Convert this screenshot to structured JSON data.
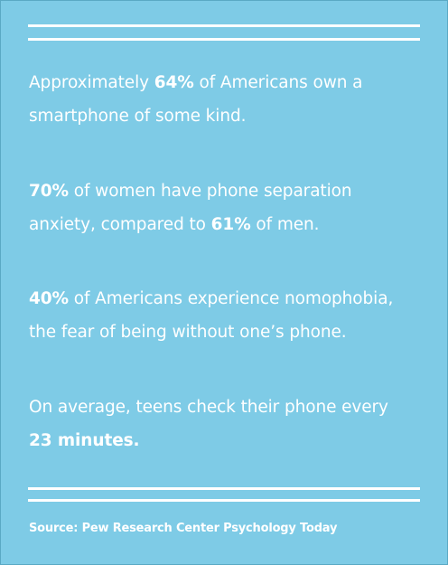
{
  "stats": [
    {
      "pre": "Approximately ",
      "highlight": "64%",
      "post": " of Americans own a",
      "line2": "smartphone of some kind."
    },
    {
      "highlight": "70%",
      "post": " of women have phone separation",
      "line2_pre": "anxiety, compared to ",
      "line2_highlight": "61%",
      "line2_post": " of men."
    },
    {
      "highlight": "40%",
      "post": " of Americans experience nomophobia,",
      "line2": "the fear of being without one’s phone."
    },
    {
      "line1": "On average, teens check their phone every",
      "line2_highlight": "23 minutes."
    }
  ],
  "source": "Source: Pew Research Center Psychology Today",
  "colors": {
    "background": "#7ecbe6",
    "text": "#ffffff"
  }
}
